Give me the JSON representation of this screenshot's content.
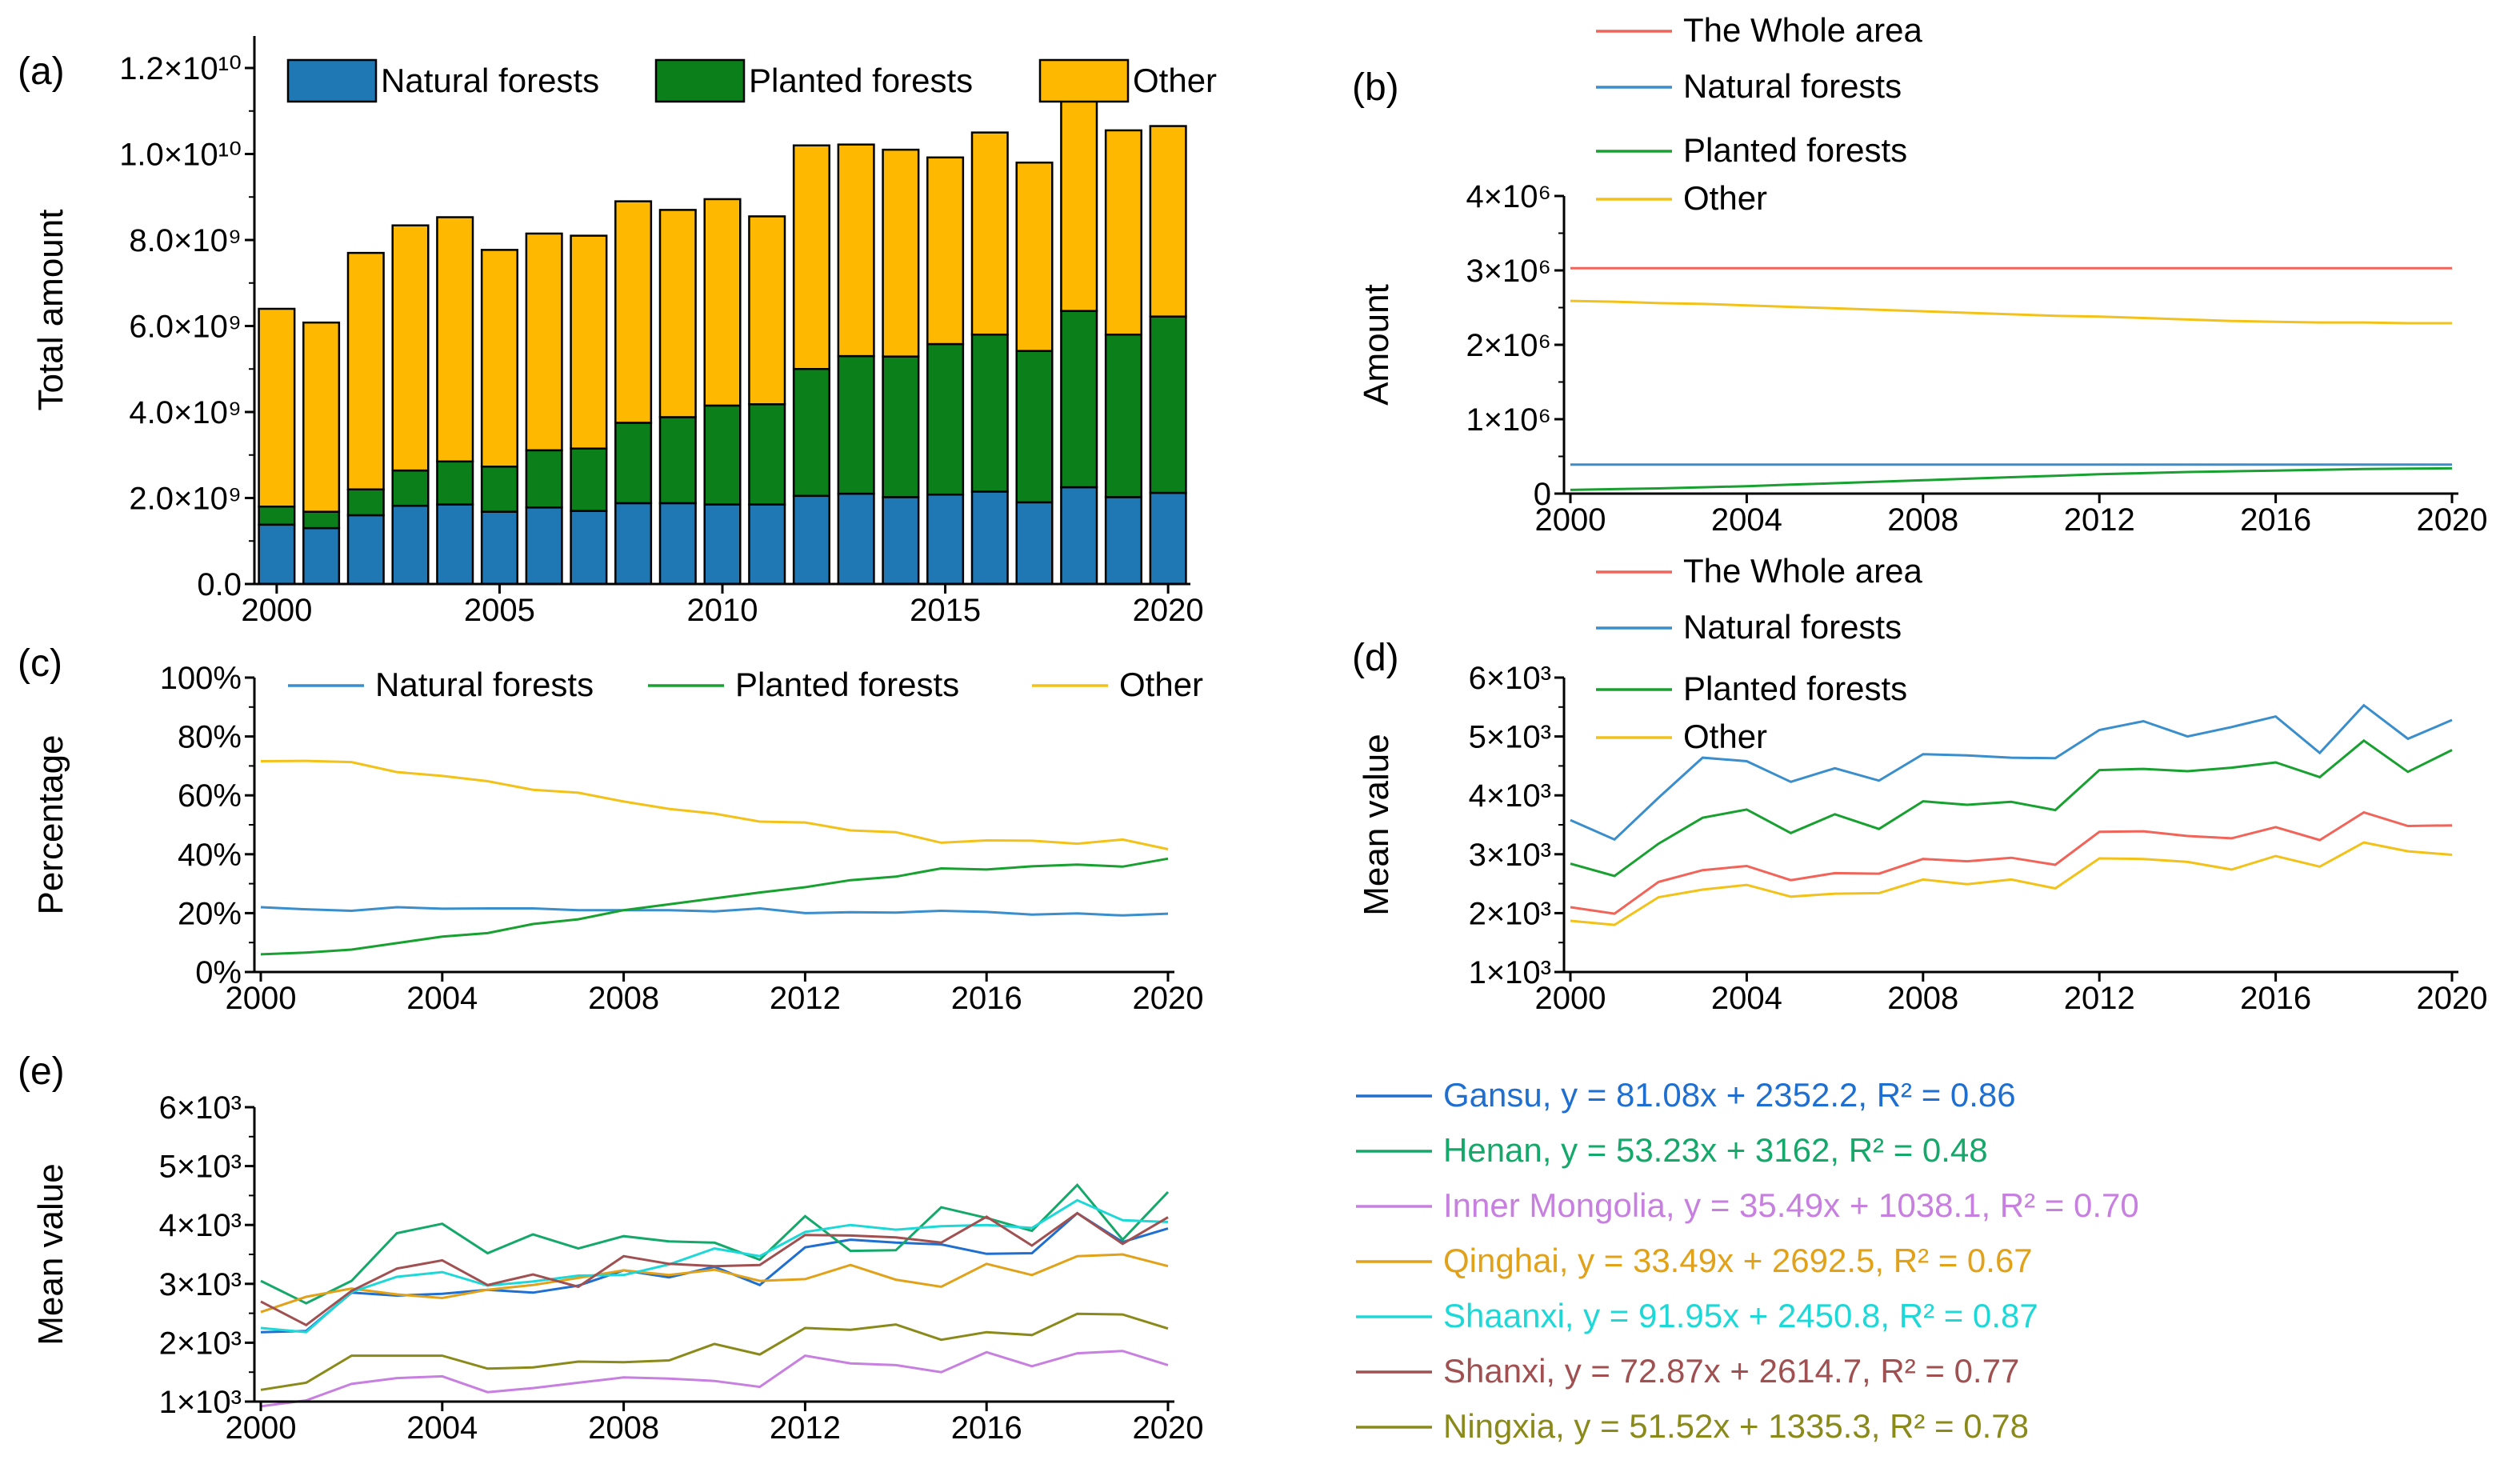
{
  "colors": {
    "natural": "#1f77b4",
    "planted": "#0a7f1a",
    "other": "#ffb800",
    "whole": "#f0645a",
    "natural_line": "#3a8ecc",
    "planted_line": "#18a030",
    "other_line": "#f2c21a"
  },
  "chart_data": [
    {
      "id": "a",
      "panel_label": "(a)",
      "type": "bar",
      "stacked": true,
      "categories": [
        "2000",
        "2001",
        "2002",
        "2003",
        "2004",
        "2005",
        "2006",
        "2007",
        "2008",
        "2009",
        "2010",
        "2011",
        "2012",
        "2013",
        "2014",
        "2015",
        "2016",
        "2017",
        "2018",
        "2019",
        "2020"
      ],
      "series": [
        {
          "name": "Natural forests",
          "values": [
            1380000000.0,
            1300000000.0,
            1600000000.0,
            1820000000.0,
            1850000000.0,
            1680000000.0,
            1780000000.0,
            1700000000.0,
            1880000000.0,
            1880000000.0,
            1850000000.0,
            1850000000.0,
            2050000000.0,
            2100000000.0,
            2020000000.0,
            2080000000.0,
            2150000000.0,
            1900000000.0,
            2250000000.0,
            2020000000.0,
            2120000000.0
          ]
        },
        {
          "name": "Planted forests",
          "values": [
            420000000.0,
            380000000.0,
            600000000.0,
            820000000.0,
            1000000000.0,
            1050000000.0,
            1330000000.0,
            1450000000.0,
            1870000000.0,
            2000000000.0,
            2300000000.0,
            2330000000.0,
            2950000000.0,
            3200000000.0,
            3270000000.0,
            3500000000.0,
            3650000000.0,
            3520000000.0,
            4100000000.0,
            3780000000.0,
            4100000000.0
          ]
        },
        {
          "name": "Other",
          "values": [
            4600000000.0,
            4400000000.0,
            5500000000.0,
            5700000000.0,
            5680000000.0,
            5040000000.0,
            5040000000.0,
            4950000000.0,
            5150000000.0,
            4820000000.0,
            4800000000.0,
            4370000000.0,
            5200000000.0,
            4920000000.0,
            4810000000.0,
            4340000000.0,
            4700000000.0,
            4380000000.0,
            4950000000.0,
            4750000000.0,
            4430000000.0
          ]
        }
      ],
      "ylabel": "Total amount",
      "ylim": [
        0,
        13000000000.0
      ],
      "yticks": [
        "0.0",
        "2.0×10⁹",
        "4.0×10⁹",
        "6.0×10⁹",
        "8.0×10⁹",
        "1.0×10¹⁰",
        "1.2×10¹⁰"
      ],
      "xticks": [
        "2000",
        "2005",
        "2010",
        "2015",
        "2020"
      ],
      "legend": [
        "Natural forests",
        "Planted forests",
        "Other"
      ]
    },
    {
      "id": "b",
      "panel_label": "(b)",
      "type": "line",
      "x": [
        2000,
        2001,
        2002,
        2003,
        2004,
        2005,
        2006,
        2007,
        2008,
        2009,
        2010,
        2011,
        2012,
        2013,
        2014,
        2015,
        2016,
        2017,
        2018,
        2019,
        2020
      ],
      "series": [
        {
          "name": "The Whole area",
          "values": [
            3030000.0,
            3030000.0,
            3030000.0,
            3030000.0,
            3030000.0,
            3030000.0,
            3030000.0,
            3030000.0,
            3030000.0,
            3030000.0,
            3030000.0,
            3030000.0,
            3030000.0,
            3030000.0,
            3030000.0,
            3030000.0,
            3030000.0,
            3030000.0,
            3030000.0,
            3030000.0,
            3030000.0
          ]
        },
        {
          "name": "Natural forests",
          "values": [
            390000.0,
            390000.0,
            390000.0,
            390000.0,
            390000.0,
            390000.0,
            390000.0,
            390000.0,
            390000.0,
            390000.0,
            390000.0,
            390000.0,
            390000.0,
            390000.0,
            390000.0,
            390000.0,
            390000.0,
            390000.0,
            390000.0,
            390000.0,
            390000.0
          ]
        },
        {
          "name": "Planted forests",
          "values": [
            50000.0,
            60000.0,
            70000.0,
            85000.0,
            100000.0,
            120000.0,
            140000.0,
            160000.0,
            180000.0,
            200000.0,
            220000.0,
            240000.0,
            260000.0,
            275000.0,
            290000.0,
            300000.0,
            310000.0,
            320000.0,
            330000.0,
            335000.0,
            340000.0
          ]
        },
        {
          "name": "Other",
          "values": [
            2590000.0,
            2580000.0,
            2560000.0,
            2550000.0,
            2530000.0,
            2510000.0,
            2490000.0,
            2470000.0,
            2450000.0,
            2430000.0,
            2410000.0,
            2390000.0,
            2380000.0,
            2360000.0,
            2340000.0,
            2320000.0,
            2310000.0,
            2300000.0,
            2300000.0,
            2290000.0,
            2290000.0
          ]
        }
      ],
      "ylabel": "Amount",
      "ylim": [
        0,
        4000000.0
      ],
      "yticks": [
        "0",
        "1×10⁶",
        "2×10⁶",
        "3×10⁶",
        "4×10⁶"
      ],
      "xticks": [
        "2000",
        "2004",
        "2008",
        "2012",
        "2016",
        "2020"
      ],
      "legend": [
        "The Whole area",
        "Natural forests",
        "Planted forests",
        "Other"
      ]
    },
    {
      "id": "c",
      "panel_label": "(c)",
      "type": "line",
      "x": [
        2000,
        2001,
        2002,
        2003,
        2004,
        2005,
        2006,
        2007,
        2008,
        2009,
        2010,
        2011,
        2012,
        2013,
        2014,
        2015,
        2016,
        2017,
        2018,
        2019,
        2020
      ],
      "series": [
        {
          "name": "Natural forests",
          "values": [
            22,
            21.3,
            20.8,
            22,
            21.5,
            21.6,
            21.6,
            21,
            21,
            21,
            20.6,
            21.6,
            20,
            20.3,
            20.2,
            20.8,
            20.4,
            19.5,
            19.9,
            19.2,
            19.8
          ]
        },
        {
          "name": "Planted forests",
          "values": [
            6,
            6.6,
            7.6,
            9.8,
            12,
            13.2,
            16.3,
            17.9,
            21,
            23,
            25,
            27,
            28.8,
            31.2,
            32.4,
            35.2,
            34.8,
            35.9,
            36.5,
            35.8,
            38.5
          ]
        },
        {
          "name": "Other",
          "values": [
            71.6,
            71.7,
            71.3,
            67.9,
            66.6,
            64.8,
            61.9,
            60.9,
            57.9,
            55.4,
            53.8,
            51.1,
            50.8,
            48.1,
            47.5,
            43.9,
            44.7,
            44.6,
            43.6,
            45,
            41.7
          ]
        }
      ],
      "ylabel": "Percentage",
      "ylim": [
        0,
        100
      ],
      "yticks": [
        "0%",
        "20%",
        "40%",
        "60%",
        "80%",
        "100%"
      ],
      "xticks": [
        "2000",
        "2004",
        "2008",
        "2012",
        "2016",
        "2020"
      ],
      "legend": [
        "Natural forests",
        "Planted forests",
        "Other"
      ]
    },
    {
      "id": "d",
      "panel_label": "(d)",
      "type": "line",
      "x": [
        2000,
        2001,
        2002,
        2003,
        2004,
        2005,
        2006,
        2007,
        2008,
        2009,
        2010,
        2011,
        2012,
        2013,
        2014,
        2015,
        2016,
        2017,
        2018,
        2019,
        2020
      ],
      "series": [
        {
          "name": "The Whole area",
          "values": [
            2100,
            1990,
            2530,
            2730,
            2800,
            2560,
            2680,
            2670,
            2920,
            2880,
            2940,
            2820,
            3380,
            3390,
            3310,
            3270,
            3460,
            3240,
            3710,
            3480,
            3490
          ]
        },
        {
          "name": "Natural forests",
          "values": [
            3580,
            3250,
            3960,
            4640,
            4580,
            4230,
            4460,
            4250,
            4700,
            4680,
            4640,
            4630,
            5110,
            5260,
            5000,
            5160,
            5340,
            4720,
            5530,
            4960,
            5280
          ]
        },
        {
          "name": "Planted forests",
          "values": [
            2840,
            2630,
            3180,
            3620,
            3760,
            3360,
            3680,
            3430,
            3900,
            3840,
            3890,
            3750,
            4430,
            4450,
            4410,
            4470,
            4560,
            4310,
            4930,
            4400,
            4770
          ]
        },
        {
          "name": "Other",
          "values": [
            1870,
            1800,
            2270,
            2400,
            2480,
            2280,
            2330,
            2340,
            2570,
            2490,
            2570,
            2420,
            2930,
            2920,
            2870,
            2740,
            2970,
            2790,
            3200,
            3050,
            2990
          ]
        }
      ],
      "ylabel": "Mean value",
      "ylim": [
        1000,
        6000
      ],
      "yticks": [
        "1×10³",
        "2×10³",
        "3×10³",
        "4×10³",
        "5×10³",
        "6×10³"
      ],
      "xticks": [
        "2000",
        "2004",
        "2008",
        "2012",
        "2016",
        "2020"
      ],
      "legend": [
        "The Whole area",
        "Natural forests",
        "Planted forests",
        "Other"
      ]
    },
    {
      "id": "e",
      "panel_label": "(e)",
      "type": "line",
      "x": [
        2000,
        2001,
        2002,
        2003,
        2004,
        2005,
        2006,
        2007,
        2008,
        2009,
        2010,
        2011,
        2012,
        2013,
        2014,
        2015,
        2016,
        2017,
        2018,
        2019,
        2020
      ],
      "series": [
        {
          "name": "Gansu",
          "color": "#1f6fd1",
          "values": [
            2180,
            2200,
            2850,
            2800,
            2830,
            2900,
            2850,
            2970,
            3230,
            3110,
            3290,
            2980,
            3620,
            3750,
            3700,
            3670,
            3510,
            3520,
            4200,
            3710,
            3940
          ]
        },
        {
          "name": "Henan",
          "color": "#14a86a",
          "values": [
            3050,
            2670,
            3050,
            3860,
            4020,
            3520,
            3840,
            3600,
            3810,
            3720,
            3700,
            3410,
            4150,
            3560,
            3570,
            4300,
            4120,
            3900,
            4680,
            3750,
            4560
          ]
        },
        {
          "name": "Inner Mongolia",
          "color": "#c77fe0",
          "values": [
            920,
            1020,
            1300,
            1400,
            1430,
            1160,
            1230,
            1320,
            1410,
            1390,
            1350,
            1250,
            1780,
            1650,
            1620,
            1500,
            1840,
            1600,
            1820,
            1860,
            1620
          ]
        },
        {
          "name": "Qinghai",
          "color": "#e1a21a",
          "values": [
            2520,
            2780,
            2920,
            2820,
            2760,
            2900,
            2980,
            3100,
            3230,
            3150,
            3240,
            3050,
            3080,
            3320,
            3070,
            2950,
            3340,
            3150,
            3470,
            3500,
            3300
          ]
        },
        {
          "name": "Shaanxi",
          "color": "#1ed8d8",
          "values": [
            2250,
            2180,
            2860,
            3120,
            3200,
            2970,
            3040,
            3140,
            3150,
            3330,
            3600,
            3470,
            3880,
            4000,
            3920,
            3980,
            4000,
            3950,
            4420,
            4080,
            4050
          ]
        },
        {
          "name": "Shanxi",
          "color": "#a05050",
          "values": [
            2700,
            2300,
            2880,
            3260,
            3400,
            2980,
            3160,
            2950,
            3470,
            3340,
            3300,
            3320,
            3830,
            3820,
            3790,
            3700,
            4140,
            3650,
            4200,
            3680,
            4130
          ]
        },
        {
          "name": "Ningxia",
          "color": "#8a8a1a",
          "values": [
            1200,
            1320,
            1780,
            1780,
            1780,
            1560,
            1580,
            1680,
            1670,
            1700,
            1980,
            1800,
            2250,
            2220,
            2310,
            2050,
            2180,
            2130,
            2490,
            2480,
            2240
          ]
        }
      ],
      "ylabel": "Mean value",
      "ylim": [
        1000,
        6000
      ],
      "yticks": [
        "1×10³",
        "2×10³",
        "3×10³",
        "4×10³",
        "5×10³",
        "6×10³"
      ],
      "xticks": [
        "2000",
        "2004",
        "2008",
        "2012",
        "2016",
        "2020"
      ],
      "legend": [
        "Gansu, y = 81.08x + 2352.2, R² = 0.86",
        "Henan, y = 53.23x + 3162, R² = 0.48",
        "Inner Mongolia, y = 35.49x + 1038.1, R² = 0.70",
        "Qinghai, y = 33.49x + 2692.5, R² = 0.67",
        "Shaanxi, y = 91.95x + 2450.8, R² = 0.87",
        "Shanxi, y = 72.87x + 2614.7, R² = 0.77",
        "Ningxia, y = 51.52x + 1335.3, R² = 0.78"
      ]
    }
  ]
}
